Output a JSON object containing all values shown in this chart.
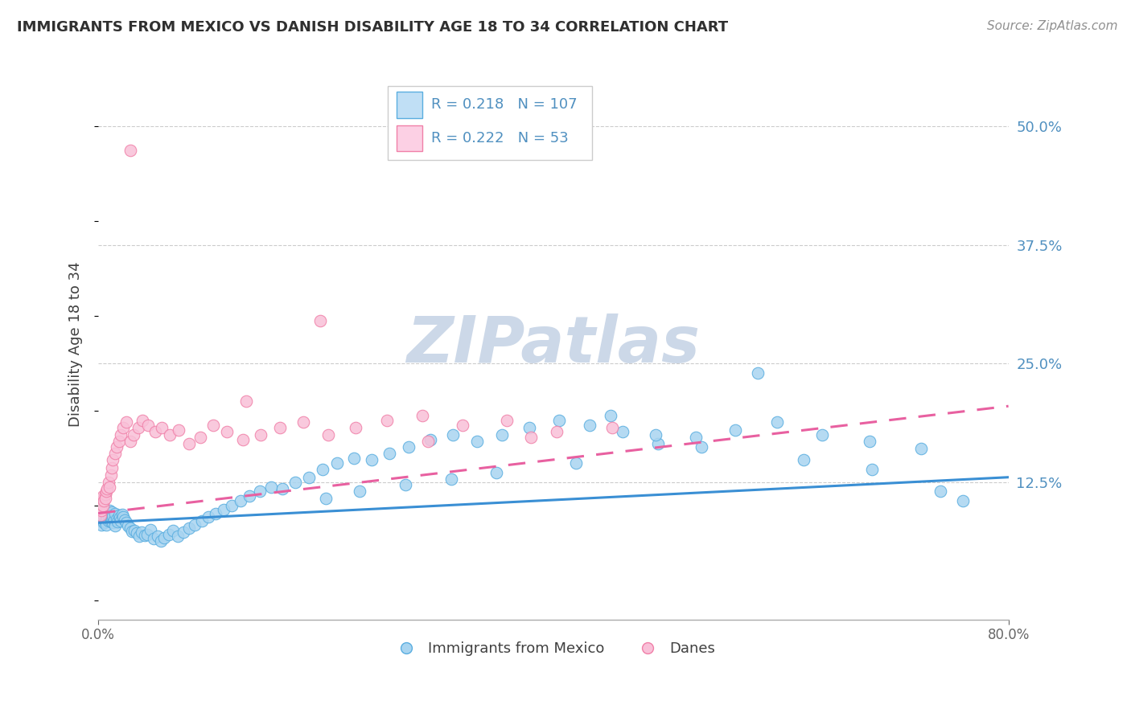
{
  "title": "IMMIGRANTS FROM MEXICO VS DANISH DISABILITY AGE 18 TO 34 CORRELATION CHART",
  "source": "Source: ZipAtlas.com",
  "ylabel": "Disability Age 18 to 34",
  "xlim": [
    0.0,
    0.8
  ],
  "ylim": [
    -0.02,
    0.56
  ],
  "ytick_right": [
    0.125,
    0.25,
    0.375,
    0.5
  ],
  "ytick_right_labels": [
    "12.5%",
    "25.0%",
    "37.5%",
    "50.0%"
  ],
  "r_mexico": 0.218,
  "n_mexico": 107,
  "r_danes": 0.222,
  "n_danes": 53,
  "color_mexico_fill": "#a8d4f0",
  "color_mexico_edge": "#5aaee0",
  "color_danes_fill": "#f9c0d8",
  "color_danes_edge": "#f080a8",
  "color_mexico_line": "#3a8fd4",
  "color_danes_line": "#e860a0",
  "legend_fill_mexico": "#c0dff5",
  "legend_fill_danes": "#fcd0e4",
  "legend_edge_mexico": "#5aaee0",
  "legend_edge_danes": "#f080a8",
  "watermark_color": "#ccd8e8",
  "title_color": "#303030",
  "source_color": "#909090",
  "ylabel_color": "#404040",
  "tick_color": "#5090c0",
  "grid_color": "#cccccc",
  "mexico_x": [
    0.001,
    0.002,
    0.002,
    0.003,
    0.003,
    0.003,
    0.004,
    0.004,
    0.005,
    0.005,
    0.005,
    0.006,
    0.006,
    0.007,
    0.007,
    0.007,
    0.008,
    0.008,
    0.009,
    0.009,
    0.01,
    0.01,
    0.011,
    0.011,
    0.012,
    0.012,
    0.013,
    0.013,
    0.014,
    0.015,
    0.015,
    0.016,
    0.017,
    0.018,
    0.019,
    0.02,
    0.021,
    0.022,
    0.023,
    0.025,
    0.026,
    0.028,
    0.03,
    0.032,
    0.034,
    0.036,
    0.038,
    0.041,
    0.043,
    0.046,
    0.049,
    0.052,
    0.055,
    0.058,
    0.062,
    0.066,
    0.07,
    0.075,
    0.08,
    0.085,
    0.091,
    0.097,
    0.103,
    0.11,
    0.117,
    0.125,
    0.133,
    0.142,
    0.152,
    0.162,
    0.173,
    0.185,
    0.197,
    0.21,
    0.225,
    0.24,
    0.256,
    0.273,
    0.292,
    0.312,
    0.333,
    0.355,
    0.379,
    0.405,
    0.432,
    0.461,
    0.492,
    0.525,
    0.56,
    0.597,
    0.636,
    0.678,
    0.723,
    0.58,
    0.49,
    0.42,
    0.35,
    0.31,
    0.27,
    0.23,
    0.2,
    0.45,
    0.53,
    0.62,
    0.68,
    0.74,
    0.76
  ],
  "mexico_y": [
    0.09,
    0.085,
    0.095,
    0.08,
    0.09,
    0.095,
    0.085,
    0.092,
    0.082,
    0.088,
    0.094,
    0.083,
    0.091,
    0.086,
    0.093,
    0.08,
    0.087,
    0.094,
    0.084,
    0.091,
    0.088,
    0.095,
    0.083,
    0.09,
    0.086,
    0.093,
    0.082,
    0.089,
    0.085,
    0.092,
    0.079,
    0.086,
    0.083,
    0.09,
    0.087,
    0.084,
    0.091,
    0.088,
    0.085,
    0.082,
    0.079,
    0.076,
    0.073,
    0.074,
    0.071,
    0.068,
    0.072,
    0.069,
    0.07,
    0.075,
    0.065,
    0.068,
    0.063,
    0.066,
    0.07,
    0.074,
    0.068,
    0.072,
    0.076,
    0.08,
    0.084,
    0.088,
    0.092,
    0.096,
    0.1,
    0.105,
    0.11,
    0.115,
    0.12,
    0.118,
    0.125,
    0.13,
    0.138,
    0.145,
    0.15,
    0.148,
    0.155,
    0.162,
    0.17,
    0.175,
    0.168,
    0.175,
    0.182,
    0.19,
    0.185,
    0.178,
    0.165,
    0.172,
    0.18,
    0.188,
    0.175,
    0.168,
    0.16,
    0.24,
    0.175,
    0.145,
    0.135,
    0.128,
    0.122,
    0.115,
    0.108,
    0.195,
    0.162,
    0.148,
    0.138,
    0.115,
    0.105
  ],
  "danes_x": [
    0.001,
    0.002,
    0.002,
    0.003,
    0.003,
    0.004,
    0.004,
    0.005,
    0.006,
    0.006,
    0.007,
    0.008,
    0.009,
    0.01,
    0.011,
    0.012,
    0.013,
    0.015,
    0.016,
    0.018,
    0.02,
    0.022,
    0.025,
    0.028,
    0.031,
    0.035,
    0.039,
    0.044,
    0.05,
    0.056,
    0.063,
    0.071,
    0.08,
    0.09,
    0.101,
    0.113,
    0.127,
    0.143,
    0.16,
    0.18,
    0.202,
    0.226,
    0.254,
    0.285,
    0.32,
    0.359,
    0.403,
    0.452,
    0.38,
    0.29,
    0.028,
    0.13,
    0.195
  ],
  "danes_y": [
    0.095,
    0.1,
    0.09,
    0.095,
    0.105,
    0.1,
    0.11,
    0.105,
    0.112,
    0.108,
    0.115,
    0.118,
    0.125,
    0.12,
    0.132,
    0.14,
    0.148,
    0.155,
    0.162,
    0.168,
    0.175,
    0.182,
    0.188,
    0.168,
    0.175,
    0.182,
    0.19,
    0.185,
    0.178,
    0.182,
    0.175,
    0.18,
    0.165,
    0.172,
    0.185,
    0.178,
    0.17,
    0.175,
    0.182,
    0.188,
    0.175,
    0.182,
    0.19,
    0.195,
    0.185,
    0.19,
    0.178,
    0.182,
    0.172,
    0.168,
    0.475,
    0.21,
    0.295
  ],
  "blue_trend_x": [
    0.0,
    0.8
  ],
  "blue_trend_y": [
    0.082,
    0.13
  ],
  "pink_trend_x": [
    0.0,
    0.8
  ],
  "pink_trend_y": [
    0.092,
    0.205
  ]
}
